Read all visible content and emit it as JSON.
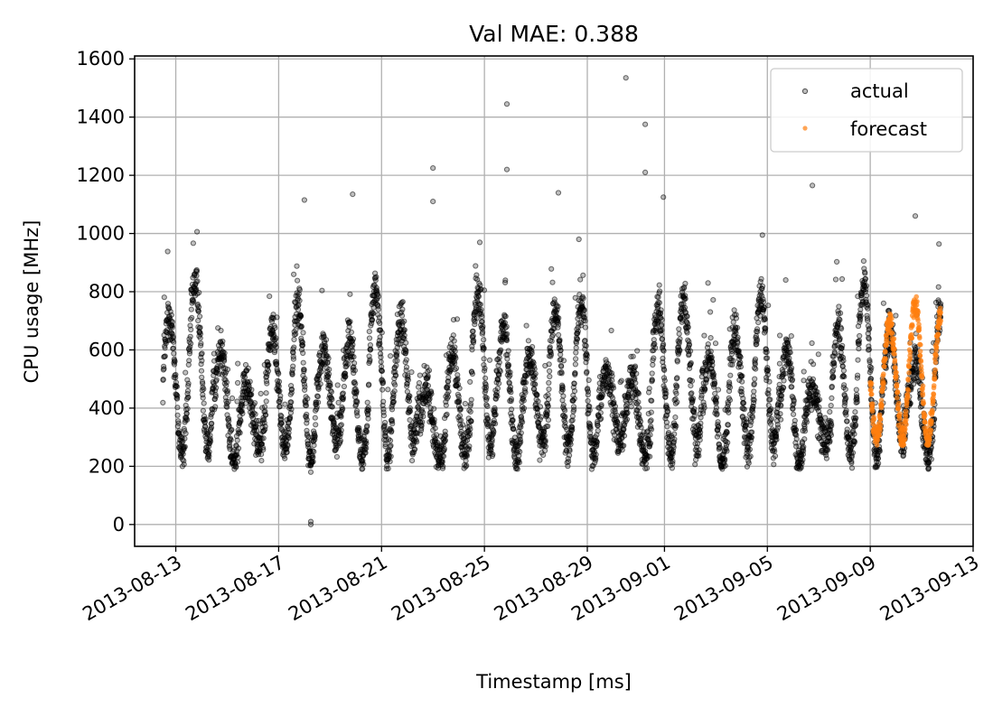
{
  "chart_data": {
    "type": "scatter",
    "title": "Val MAE: 0.388",
    "xlabel": "Timestamp [ms]",
    "ylabel": "CPU usage [MHz]",
    "xlim": [
      "2013-08-11T09:36",
      "2013-09-13T00:00"
    ],
    "ylim": [
      -75,
      1610
    ],
    "grid": true,
    "legend_position": "top-right",
    "x_tick_labels": [
      "2013-08-13",
      "2013-08-17",
      "2013-08-21",
      "2013-08-25",
      "2013-08-29",
      "2013-09-01",
      "2013-09-05",
      "2013-09-09",
      "2013-09-13"
    ],
    "y_ticks": [
      0,
      200,
      400,
      600,
      800,
      1000,
      1200,
      1400,
      1600
    ],
    "y_tick_labels": [
      "0",
      "200",
      "400",
      "600",
      "800",
      "1000",
      "1200",
      "1400",
      "1600"
    ],
    "series": [
      {
        "name": "actual",
        "color": "#000000",
        "marker": "hollow-circle",
        "x_range": [
          "2013-08-12T12:00",
          "2013-09-11T18:00"
        ],
        "pattern": "daily oscillation between roughly 250 and 800 MHz",
        "outliers": [
          {
            "x": "2013-08-18T06:00",
            "y": 0
          },
          {
            "x": "2013-08-18T06:00",
            "y": 10
          },
          {
            "x": "2013-08-18T06:00",
            "y": 180
          },
          {
            "x": "2013-08-18T00:00",
            "y": 1115
          },
          {
            "x": "2013-08-19T21:00",
            "y": 1135
          },
          {
            "x": "2013-08-23T00:00",
            "y": 1225
          },
          {
            "x": "2013-08-23T00:00",
            "y": 1110
          },
          {
            "x": "2013-08-25T21:00",
            "y": 1445
          },
          {
            "x": "2013-08-25T21:00",
            "y": 1220
          },
          {
            "x": "2013-08-30T12:00",
            "y": 1535
          },
          {
            "x": "2013-08-31T06:00",
            "y": 1375
          },
          {
            "x": "2013-08-31T06:00",
            "y": 1210
          },
          {
            "x": "2013-09-06T18:00",
            "y": 1165
          },
          {
            "x": "2013-08-27T21:00",
            "y": 1140
          },
          {
            "x": "2013-08-31T23:00",
            "y": 1125
          },
          {
            "x": "2013-09-10T18:00",
            "y": 1060
          }
        ]
      },
      {
        "name": "forecast",
        "color": "#ff7f0e",
        "marker": "filled-circle",
        "x_range": [
          "2013-09-09T00:00",
          "2013-09-11T18:00"
        ],
        "pattern": "daily oscillation between roughly 280 and 780 MHz"
      }
    ]
  }
}
